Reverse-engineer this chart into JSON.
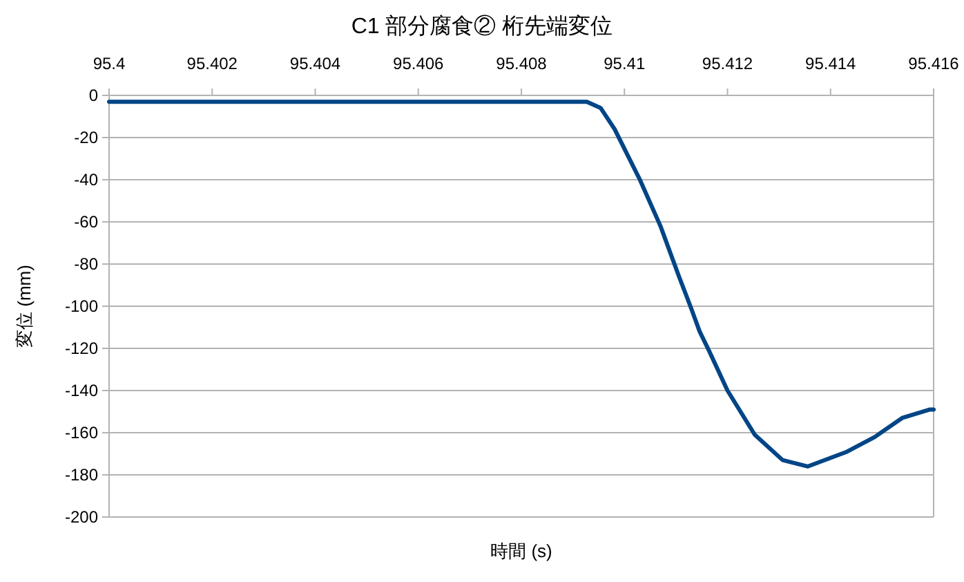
{
  "chart_data": {
    "type": "line",
    "title": "C1 部分腐食② 桁先端変位",
    "xlabel": "時間 (s)",
    "ylabel": "変位 (mm)",
    "xlim": [
      95.4,
      95.416
    ],
    "xticks": [
      95.4,
      95.402,
      95.404,
      95.406,
      95.408,
      95.41,
      95.412,
      95.414,
      95.416
    ],
    "ylim": [
      -200,
      0
    ],
    "yticks": [
      -200,
      -180,
      -160,
      -140,
      -120,
      -100,
      -80,
      -60,
      -40,
      -20,
      0
    ],
    "grid": "y",
    "series": [
      {
        "color": "#004586",
        "x": [
          95.4,
          95.409,
          95.40927,
          95.40954,
          95.40981,
          95.4103,
          95.4107,
          95.41106,
          95.41128,
          95.41146,
          95.41164,
          95.412,
          95.41253,
          95.41307,
          95.41356,
          95.41432,
          95.41486,
          95.41539,
          95.41593,
          95.416
        ],
        "values": [
          -3,
          -3,
          -3,
          -6,
          -16,
          -40,
          -62,
          -86,
          -100,
          -112,
          -121,
          -140,
          -161,
          -173,
          -176,
          -169,
          -162,
          -153,
          -149,
          -149
        ]
      }
    ]
  }
}
